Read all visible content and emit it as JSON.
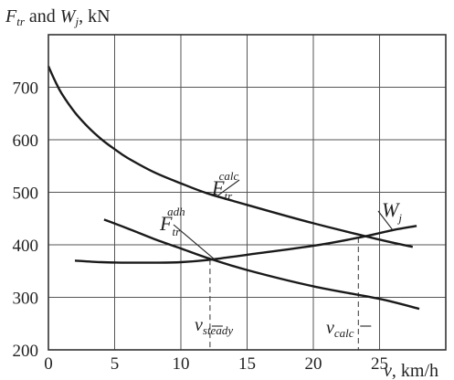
{
  "chart_data": {
    "type": "line",
    "ylabel": {
      "f": "F",
      "f_sub": "tr",
      "and": " and ",
      "w": "W",
      "w_sub": "j",
      "unit": ", kN"
    },
    "xlabel": {
      "v": "v",
      "unit": ", km/h"
    },
    "xlim": [
      0,
      30
    ],
    "ylim": [
      200,
      800
    ],
    "x_ticks": [
      0,
      5,
      10,
      15,
      20,
      25
    ],
    "y_ticks": [
      200,
      300,
      400,
      500,
      600,
      700
    ],
    "grid": true,
    "series": [
      {
        "key": "calc",
        "label": {
          "main": "F",
          "sub": "tr",
          "sup": "calc"
        },
        "points": [
          [
            0,
            740
          ],
          [
            0.5,
            712
          ],
          [
            1,
            688
          ],
          [
            2,
            652
          ],
          [
            3,
            624
          ],
          [
            4,
            601
          ],
          [
            5,
            582
          ],
          [
            6,
            565
          ],
          [
            8,
            538
          ],
          [
            10,
            517
          ],
          [
            12,
            498
          ],
          [
            15,
            476
          ],
          [
            20,
            441
          ],
          [
            25,
            410
          ],
          [
            27.5,
            396
          ]
        ]
      },
      {
        "key": "adh",
        "label": {
          "main": "F",
          "sub": "tr",
          "sup": "adh"
        },
        "points": [
          [
            4.2,
            448
          ],
          [
            6,
            431
          ],
          [
            8,
            411
          ],
          [
            10,
            393
          ],
          [
            12,
            375
          ],
          [
            15,
            352
          ],
          [
            20,
            321
          ],
          [
            25,
            297
          ],
          [
            28,
            278
          ]
        ]
      },
      {
        "key": "Wj",
        "label": {
          "main": "W",
          "sub": "j"
        },
        "points": [
          [
            2,
            370
          ],
          [
            4,
            367
          ],
          [
            6,
            366
          ],
          [
            8,
            366
          ],
          [
            10,
            367
          ],
          [
            12,
            371
          ],
          [
            15,
            381
          ],
          [
            20,
            398
          ],
          [
            23.5,
            414
          ],
          [
            26,
            428
          ],
          [
            27.8,
            436
          ]
        ]
      }
    ],
    "markers": [
      {
        "label": {
          "main": "v",
          "sub": "steady"
        },
        "x": 12.2,
        "y": 372
      },
      {
        "label": {
          "main": "v",
          "sub": "calc"
        },
        "x": 23.4,
        "y": 414
      }
    ]
  }
}
